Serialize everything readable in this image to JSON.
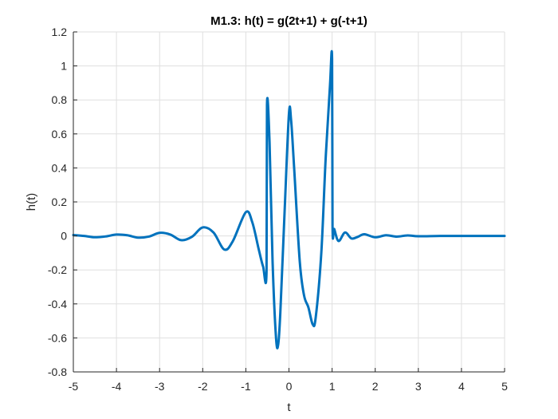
{
  "chart_data": {
    "type": "line",
    "title": "M1.3: h(t) = g(2t+1) + g(-t+1)",
    "xlabel": "t",
    "ylabel": "h(t)",
    "xlim": [
      -5,
      5
    ],
    "ylim": [
      -0.8,
      1.2
    ],
    "xticks": [
      -5,
      -4,
      -3,
      -2,
      -1,
      0,
      1,
      2,
      3,
      4,
      5
    ],
    "yticks": [
      -0.8,
      -0.6,
      -0.4,
      -0.2,
      0,
      0.2,
      0.4,
      0.6,
      0.8,
      1,
      1.2
    ],
    "xtick_labels": [
      "-5",
      "-4",
      "-3",
      "-2",
      "-1",
      "0",
      "1",
      "2",
      "3",
      "4",
      "5"
    ],
    "ytick_labels": [
      "-0.8",
      "-0.6",
      "-0.4",
      "-0.2",
      "0",
      "0.2",
      "0.4",
      "0.6",
      "0.8",
      "1",
      "1.2"
    ],
    "grid": true,
    "series": [
      {
        "color": "#0072BD",
        "points": [
          [
            -5.0,
            0.005
          ],
          [
            -4.75,
            0.0
          ],
          [
            -4.5,
            -0.008
          ],
          [
            -4.25,
            -0.003
          ],
          [
            -4.0,
            0.008
          ],
          [
            -3.75,
            0.004
          ],
          [
            -3.5,
            -0.01
          ],
          [
            -3.25,
            -0.004
          ],
          [
            -3.0,
            0.018
          ],
          [
            -2.75,
            0.008
          ],
          [
            -2.5,
            -0.025
          ],
          [
            -2.25,
            -0.005
          ],
          [
            -2.0,
            0.05
          ],
          [
            -1.75,
            0.02
          ],
          [
            -1.5,
            -0.08
          ],
          [
            -1.3,
            -0.03
          ],
          [
            -1.0,
            0.14
          ],
          [
            -0.85,
            0.08
          ],
          [
            -0.7,
            -0.08
          ],
          [
            -0.6,
            -0.18
          ],
          [
            -0.52,
            -0.21
          ],
          [
            -0.51,
            0.77
          ],
          [
            -0.45,
            0.55
          ],
          [
            -0.38,
            -0.15
          ],
          [
            -0.3,
            -0.6
          ],
          [
            -0.25,
            -0.64
          ],
          [
            -0.2,
            -0.45
          ],
          [
            -0.1,
            0.15
          ],
          [
            0.0,
            0.72
          ],
          [
            0.05,
            0.68
          ],
          [
            0.12,
            0.4
          ],
          [
            0.25,
            -0.15
          ],
          [
            0.35,
            -0.35
          ],
          [
            0.45,
            -0.42
          ],
          [
            0.55,
            -0.52
          ],
          [
            0.62,
            -0.48
          ],
          [
            0.75,
            -0.1
          ],
          [
            0.85,
            0.45
          ],
          [
            0.95,
            0.88
          ],
          [
            1.0,
            1.04
          ],
          [
            1.01,
            0.06
          ],
          [
            1.05,
            0.04
          ],
          [
            1.15,
            -0.03
          ],
          [
            1.3,
            0.02
          ],
          [
            1.45,
            -0.015
          ],
          [
            1.6,
            -0.005
          ],
          [
            1.75,
            0.01
          ],
          [
            2.0,
            -0.008
          ],
          [
            2.25,
            0.004
          ],
          [
            2.5,
            -0.004
          ],
          [
            2.75,
            0.003
          ],
          [
            3.0,
            -0.002
          ],
          [
            3.5,
            0.0
          ],
          [
            4.0,
            0.0
          ],
          [
            4.5,
            0.0
          ],
          [
            5.0,
            0.0
          ]
        ]
      }
    ]
  }
}
